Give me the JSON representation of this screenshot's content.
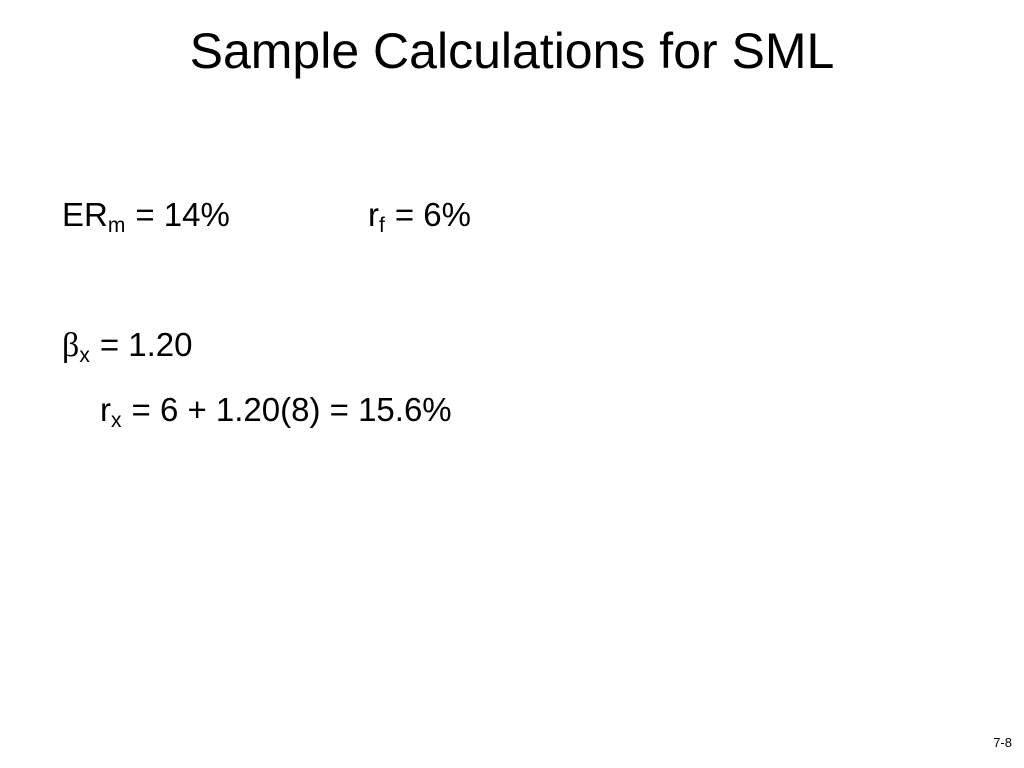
{
  "title": "Sample Calculations for SML",
  "items": [
    {
      "base": "ER",
      "sub": "m",
      "rest": "= 14%"
    },
    {
      "base": "r",
      "sub": "f",
      "rest": "= 6%"
    },
    {
      "base": "β",
      "sub": "x",
      "rest": "= 1.20"
    },
    {
      "base": "r",
      "sub": "x",
      "rest": "= 6 + 1.20(8) = 15.6%"
    }
  ],
  "page_number": "7-8"
}
